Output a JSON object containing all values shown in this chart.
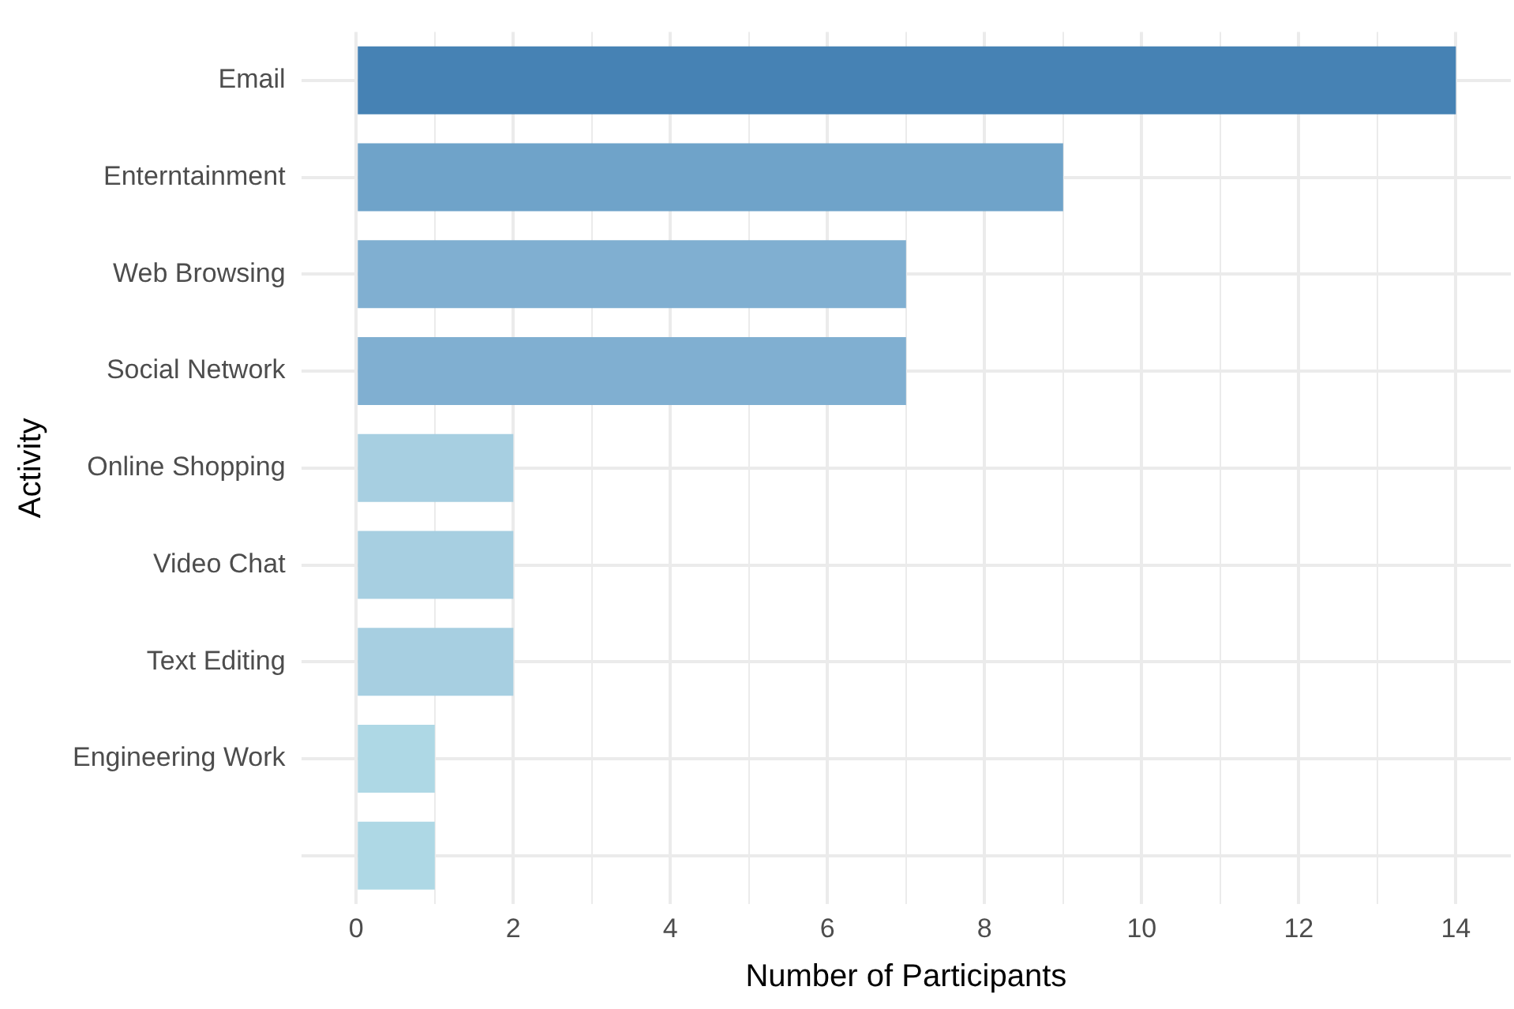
{
  "chart_data": {
    "type": "bar",
    "orientation": "horizontal",
    "xlabel": "Number of Participants",
    "ylabel": "Activity",
    "categories": [
      "Email",
      "Enterntainment",
      "Web Browsing",
      "Social Network",
      "Online Shopping",
      "Video Chat",
      "Text Editing",
      "Engineering Work",
      null
    ],
    "values": [
      14,
      9,
      7,
      7,
      2,
      2,
      2,
      1,
      1
    ],
    "colors": [
      "#4682b4",
      "#6fa3c9",
      "#80afd1",
      "#80afd1",
      "#a7cfe1",
      "#a7cfe1",
      "#a7cfe1",
      "#aed8e5",
      "#aed8e5"
    ],
    "xlim": [
      -0.7,
      14.7
    ],
    "xticks": [
      0,
      {
        "value": 1,
        "label": null
      },
      2,
      {
        "value": 3,
        "label": null
      },
      4,
      {
        "value": 5,
        "label": null
      },
      6,
      {
        "value": 7,
        "label": null
      },
      8,
      {
        "value": 9,
        "label": null
      },
      10,
      {
        "value": 11,
        "label": null
      },
      12,
      {
        "value": 13,
        "label": null
      },
      14
    ],
    "grid": true,
    "legend": false
  }
}
